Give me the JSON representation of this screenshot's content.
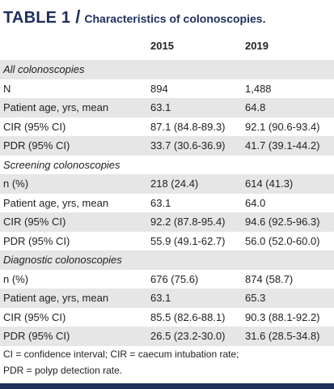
{
  "title": {
    "label": "TABLE 1",
    "separator": "/",
    "caption": "Characteristics of colonoscopies."
  },
  "table": {
    "columns": [
      "",
      "2015",
      "2019"
    ],
    "rows": [
      {
        "label": "All colonoscopies",
        "type": "section",
        "v2015": "",
        "v2019": ""
      },
      {
        "label": "N",
        "type": "data",
        "v2015": "894",
        "v2019": "1,488"
      },
      {
        "label": "Patient age, yrs, mean",
        "type": "data",
        "v2015": "63.1",
        "v2019": "64.8"
      },
      {
        "label": "CIR (95% CI)",
        "type": "data",
        "v2015": "87.1 (84.8-89.3)",
        "v2019": "92.1 (90.6-93.4)"
      },
      {
        "label": "PDR (95% CI)",
        "type": "data",
        "v2015": "33.7 (30.6-36.9)",
        "v2019": "41.7 (39.1-44.2)"
      },
      {
        "label": "Screening colonoscopies",
        "type": "section",
        "v2015": "",
        "v2019": ""
      },
      {
        "label": "n (%)",
        "type": "data",
        "v2015": "218 (24.4)",
        "v2019": "614 (41.3)"
      },
      {
        "label": "Patient age, yrs, mean",
        "type": "data",
        "v2015": "63.1",
        "v2019": "64.0"
      },
      {
        "label": "CIR (95% CI)",
        "type": "data",
        "v2015": "92.2 (87.8-95.4)",
        "v2019": "94.6 (92.5-96.3)"
      },
      {
        "label": "PDR (95% CI)",
        "type": "data",
        "v2015": "55.9 (49.1-62.7)",
        "v2019": "56.0 (52.0-60.0)"
      },
      {
        "label": "Diagnostic colonoscopies",
        "type": "section",
        "v2015": "",
        "v2019": ""
      },
      {
        "label": "n (%)",
        "type": "data",
        "v2015": "676 (75.6)",
        "v2019": "874 (58.7)"
      },
      {
        "label": "Patient age, yrs, mean",
        "type": "data",
        "v2015": "63.1",
        "v2019": "65.3"
      },
      {
        "label": "CIR (95% CI)",
        "type": "data",
        "v2015": "85.5 (82.6-88.1)",
        "v2019": "90.3 (88.1-92.2)"
      },
      {
        "label": "PDR (95% CI)",
        "type": "data",
        "v2015": "26.5 (23.2-30.0)",
        "v2019": "31.6 (28.5-34.8)"
      }
    ]
  },
  "footnote": {
    "line1": "CI = confidence interval; CIR = caecum intubation rate;",
    "line2": "PDR = polyp detection rate."
  },
  "colors": {
    "title": "#1f2f5c",
    "shade": "#e6e6e6",
    "bar": "#1f2f5c"
  }
}
